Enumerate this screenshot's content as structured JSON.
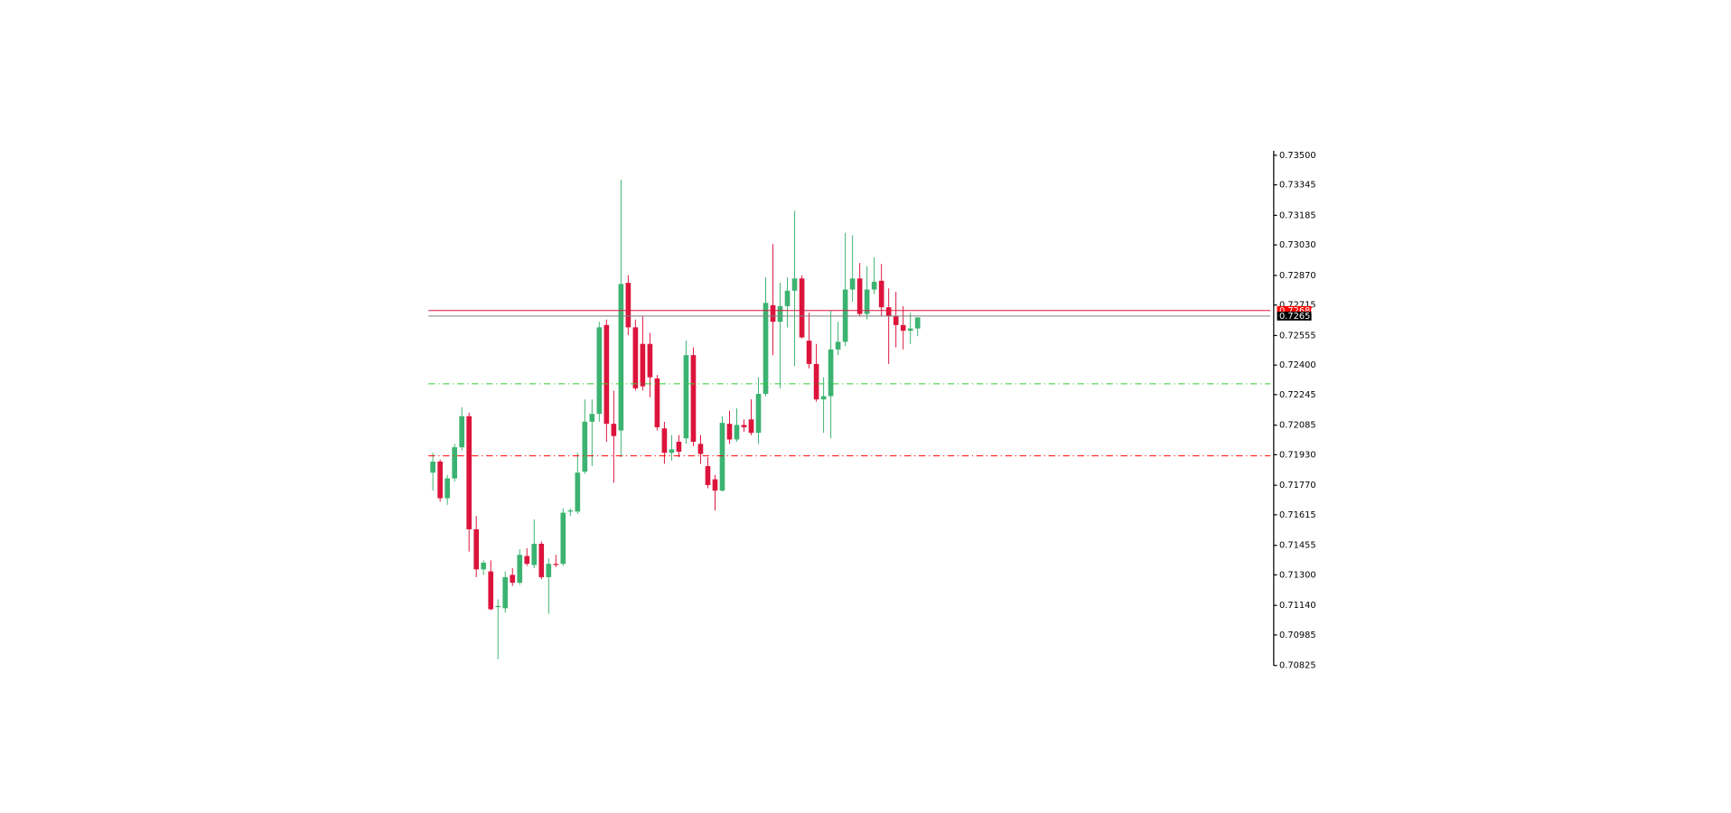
{
  "chart_data": {
    "type": "candlestick",
    "up_color": "#3cb371",
    "down_color": "#dc143c",
    "ylim": [
      0.70825,
      0.735
    ],
    "yticks": [
      {
        "value": 0.735,
        "label": "0.73500"
      },
      0.73345,
      0.73185,
      {
        "value": 0.7303,
        "label": "0.73030"
      },
      {
        "value": 0.7287,
        "label": "0.72870"
      },
      0.72715,
      0.72555,
      {
        "value": 0.724,
        "label": "0.72400"
      },
      0.72245,
      0.72085,
      {
        "value": 0.7193,
        "label": "0.71930"
      },
      {
        "value": 0.7177,
        "label": "0.71770"
      },
      0.71615,
      0.71455,
      {
        "value": 0.713,
        "label": "0.71300"
      },
      {
        "value": 0.7114,
        "label": "0.71140"
      },
      0.70985,
      0.70825
    ],
    "open": [
      0.71836,
      0.71894,
      0.71702,
      0.71806,
      0.71969,
      0.72132,
      0.71539,
      0.71329,
      0.71318,
      0.71131,
      0.71125,
      0.713,
      0.71259,
      0.71399,
      0.71352,
      0.71463,
      0.71288,
      0.71358,
      0.71358,
      0.71632,
      0.71632,
      0.71841,
      0.72103,
      0.72144,
      0.7261,
      0.72092,
      0.72057,
      0.72831,
      0.72598,
      0.72511,
      0.72511,
      0.7233,
      0.72068,
      0.7194,
      0.71998,
      0.72016,
      0.72452,
      0.71987,
      0.7187,
      0.71801,
      0.71742,
      0.72092,
      0.7201,
      0.72086,
      0.72115,
      0.72045,
      0.72249,
      0.72714,
      0.72627,
      0.72709,
      0.7279,
      0.72854,
      0.72528,
      0.72406,
      0.7222,
      0.72237,
      0.72482,
      0.72522,
      0.72796,
      0.72854,
      0.72668,
      0.72796,
      0.72842,
      0.72703,
      0.72656,
      0.7261,
      0.7258,
      0.72592
    ],
    "high": [
      0.7194,
      0.71905,
      0.71824,
      0.71987,
      0.72179,
      0.7215,
      0.71609,
      0.71376,
      0.71376,
      0.71172,
      0.71318,
      0.71335,
      0.71434,
      0.7144,
      0.71591,
      0.71475,
      0.71387,
      0.71405,
      0.71649,
      0.71649,
      0.7194,
      0.7222,
      0.7222,
      0.72627,
      0.72639,
      0.72266,
      0.73372,
      0.72871,
      0.72639,
      0.72656,
      0.72569,
      0.72348,
      0.72103,
      0.72033,
      0.72033,
      0.72528,
      0.72493,
      0.72033,
      0.71917,
      0.71824,
      0.72132,
      0.72161,
      0.72173,
      0.72115,
      0.7222,
      0.72336,
      0.7286,
      0.73034,
      0.72831,
      0.7286,
      0.73209,
      0.72871,
      0.72674,
      0.72511,
      0.72336,
      0.72685,
      0.72627,
      0.73093,
      0.73081,
      0.72935,
      0.72918,
      0.72965,
      0.7293,
      0.72802,
      0.72784,
      0.72709,
      0.72674,
      0.7265
    ],
    "low": [
      0.71742,
      0.71684,
      0.71667,
      0.71789,
      0.71952,
      0.71422,
      0.71288,
      0.713,
      0.71114,
      0.70858,
      0.71102,
      0.71242,
      0.71248,
      0.71347,
      0.71335,
      0.71277,
      0.71096,
      0.71341,
      0.71347,
      0.71609,
      0.7162,
      0.7183,
      0.7187,
      0.72103,
      0.71998,
      0.71783,
      0.71917,
      0.72557,
      0.72266,
      0.72266,
      0.72231,
      0.72057,
      0.71882,
      0.719,
      0.71917,
      0.71987,
      0.71975,
      0.71882,
      0.71754,
      0.71638,
      0.71737,
      0.71987,
      0.71998,
      0.72051,
      0.72033,
      0.71987,
      0.72237,
      0.72452,
      0.72278,
      0.72598,
      0.72394,
      0.7254,
      0.72383,
      0.72208,
      0.72045,
      0.72016,
      0.72452,
      0.72499,
      0.72732,
      0.72656,
      0.72639,
      0.72772,
      0.72656,
      0.72406,
      0.72493,
      0.72482,
      0.72511,
      0.72551
    ],
    "close": [
      0.71894,
      0.71702,
      0.71806,
      0.71969,
      0.72132,
      0.71539,
      0.71329,
      0.71364,
      0.7112,
      0.71137,
      0.71288,
      0.71259,
      0.71405,
      0.71358,
      0.71463,
      0.71288,
      0.71358,
      0.71352,
      0.71626,
      0.71638,
      0.71836,
      0.72103,
      0.72144,
      0.72598,
      0.72092,
      0.72028,
      0.72825,
      0.72598,
      0.72278,
      0.72289,
      0.72336,
      0.72074,
      0.7194,
      0.71958,
      0.71946,
      0.72452,
      0.71998,
      0.71934,
      0.71771,
      0.71742,
      0.72097,
      0.7201,
      0.72086,
      0.72074,
      0.72045,
      0.72249,
      0.72726,
      0.72627,
      0.72709,
      0.7279,
      0.72854,
      0.72545,
      0.72406,
      0.7222,
      0.72237,
      0.72482,
      0.72522,
      0.72796,
      0.72854,
      0.72668,
      0.72796,
      0.72837,
      0.72703,
      0.72656,
      0.7261,
      0.7258,
      0.72592,
      0.7265
    ],
    "levels": [
      {
        "value": 0.72686,
        "color": "#dc143c",
        "style": "solid",
        "label_color": "#ff0000"
      },
      {
        "value": 0.72657,
        "color": "#808080",
        "style": "solid",
        "label_color": "#000000"
      },
      {
        "value": 0.72302,
        "color": "#32cd32",
        "style": "dashdot"
      },
      {
        "value": 0.71924,
        "color": "#ff0000",
        "style": "dashdot"
      }
    ]
  }
}
